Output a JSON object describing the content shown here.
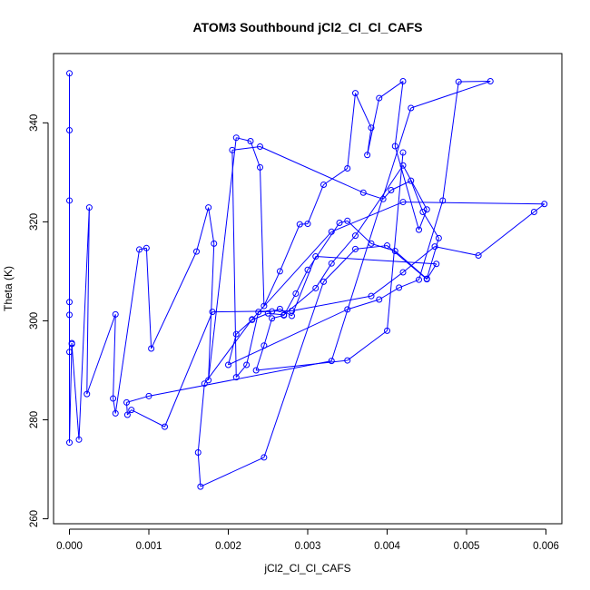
{
  "chart_data": {
    "type": "line",
    "title": "ATOM3 Southbound jCl2_Cl_Cl_CAFS",
    "xlabel": "jCl2_Cl_Cl_CAFS",
    "ylabel": "Theta (K)",
    "xlim": [
      -0.0002,
      0.0062
    ],
    "ylim": [
      259,
      354
    ],
    "x_ticks": [
      "0.000",
      "0.001",
      "0.002",
      "0.003",
      "0.004",
      "0.005",
      "0.006"
    ],
    "y_ticks": [
      "260",
      "280",
      "300",
      "320",
      "340"
    ],
    "grid": false,
    "legend": "none",
    "colors": {
      "series": "#0000ff",
      "axes": "#000000"
    },
    "series": [
      {
        "marker": "open-circle",
        "x": [
          0.0,
          0.0,
          0.0,
          0.0,
          0.0,
          0.0,
          0.0,
          3e-05,
          3e-05,
          0.00012,
          0.00025,
          0.00022,
          0.00058,
          0.00055,
          0.00058,
          0.00088,
          0.00097,
          0.00103,
          0.0016,
          0.00175,
          0.00182,
          0.00175,
          0.0021,
          0.00228,
          0.0024,
          0.00245,
          0.00265,
          0.0029,
          0.003,
          0.0032,
          0.0035,
          0.0036,
          0.0038,
          0.00375,
          0.0039,
          0.0042,
          0.0041,
          0.0044,
          0.0045,
          0.0042,
          0.0036,
          0.0033,
          0.0031,
          0.0027,
          0.0025,
          0.0023,
          0.0021,
          0.002,
          0.0035,
          0.0039,
          0.00415,
          0.0044,
          0.0047,
          0.0049,
          0.0053,
          0.0043,
          0.0033,
          0.001,
          0.00072,
          0.00073,
          0.00078,
          0.0012,
          0.0018,
          0.0028,
          0.0038,
          0.0042,
          0.0046,
          0.00515,
          0.00585,
          0.00598,
          0.0042,
          0.0033,
          0.0023,
          0.0017,
          0.00162,
          0.00165,
          0.00245,
          0.0032,
          0.0036,
          0.004,
          0.0045,
          0.00462,
          0.0031,
          0.0028,
          0.00265,
          0.00255,
          0.00238,
          0.00223,
          0.0021,
          0.00205,
          0.0024,
          0.0037,
          0.00395,
          0.00405,
          0.0043,
          0.00445,
          0.00465,
          0.0045,
          0.0041,
          0.0038,
          0.0035,
          0.0034,
          0.003,
          0.00285,
          0.0027,
          0.00255,
          0.00245,
          0.00235,
          0.0035,
          0.004,
          0.0042
        ],
        "y": [
          350,
          338.5,
          324.3,
          303.8,
          301.2,
          293.7,
          275.4,
          295.5,
          295.3,
          276.0,
          322.9,
          285.2,
          301.3,
          284.3,
          281.3,
          314.4,
          314.7,
          294.4,
          314.0,
          322.9,
          315.6,
          288.0,
          337.0,
          336.3,
          331.0,
          303.0,
          310.0,
          319.5,
          319.6,
          327.5,
          330.8,
          346.0,
          339.0,
          333.5,
          345.0,
          348.4,
          335.3,
          318.4,
          322.5,
          331.4,
          317.2,
          311.6,
          306.6,
          301.2,
          301.5,
          300.2,
          297.3,
          291.1,
          302.3,
          304.3,
          306.7,
          308.3,
          324.3,
          348.3,
          348.4,
          343.0,
          291.9,
          284.8,
          283.5,
          281.0,
          282.0,
          278.6,
          301.8,
          302.0,
          305.0,
          309.8,
          315.0,
          313.2,
          322.0,
          323.6,
          324.0,
          318.0,
          300.3,
          287.3,
          273.4,
          266.5,
          272.4,
          307.9,
          314.5,
          315.2,
          308.4,
          311.5,
          313.0,
          301.0,
          302.4,
          301.9,
          301.8,
          291.1,
          288.6,
          334.5,
          335.2,
          325.9,
          324.6,
          326.4,
          328.3,
          322.0,
          316.7,
          308.5,
          314.1,
          315.6,
          320.2,
          319.8,
          310.3,
          305.5,
          301.1,
          300.5,
          295.0,
          290.0,
          292.0,
          298.0,
          334.0
        ]
      }
    ]
  }
}
